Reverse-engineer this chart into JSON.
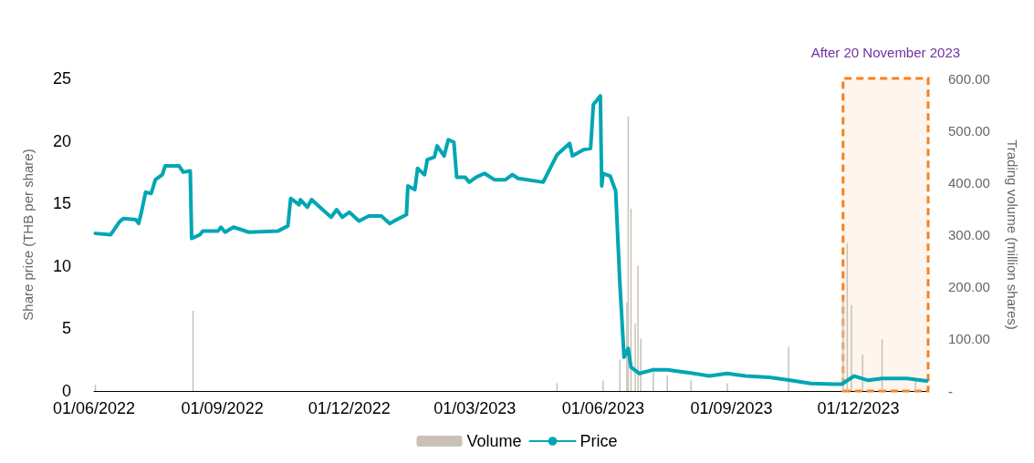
{
  "chart_data": {
    "type": "line",
    "ylabel": "Share price (THB per share)",
    "y2label": "Trading volume (million shares)",
    "xlim": [
      "2022-06-01",
      "2024-01-20"
    ],
    "xticks": [
      {
        "value": "2022-06-01",
        "label": "01/06/2022"
      },
      {
        "value": "2022-09-01",
        "label": "01/09/2022"
      },
      {
        "value": "2022-12-01",
        "label": "01/12/2022"
      },
      {
        "value": "2023-03-01",
        "label": "01/03/2023"
      },
      {
        "value": "2023-06-01",
        "label": "01/06/2023"
      },
      {
        "value": "2023-09-01",
        "label": "01/09/2023"
      },
      {
        "value": "2023-12-01",
        "label": "01/12/2023"
      }
    ],
    "ylim": [
      0,
      25
    ],
    "yticks": [
      0,
      5,
      10,
      15,
      20,
      25
    ],
    "y2lim": [
      0,
      600
    ],
    "y2ticks": [
      {
        "value": 0,
        "label": "-"
      },
      {
        "value": 100,
        "label": "100.00"
      },
      {
        "value": 200,
        "label": "200.00"
      },
      {
        "value": 300,
        "label": "300.00"
      },
      {
        "value": 400,
        "label": "400.00"
      },
      {
        "value": 500,
        "label": "500.00"
      },
      {
        "value": 600,
        "label": "600.00"
      }
    ],
    "grid": false,
    "legend": "bottom",
    "marker": "none",
    "line_style": "solid",
    "bands": [
      {
        "axis": "x",
        "from": "2023-11-20",
        "to": "2024-01-20",
        "label": "After 20 November 2023",
        "color": "#f58220"
      }
    ],
    "series": [
      {
        "name": "Volume",
        "type": "bar",
        "axis": "y2",
        "color": "#c9c1b6",
        "x": [
          "2022-06-02",
          "2022-08-11",
          "2023-04-29",
          "2023-06-01",
          "2023-06-13",
          "2023-06-18",
          "2023-06-19",
          "2023-06-21",
          "2023-06-24",
          "2023-06-26",
          "2023-06-28",
          "2023-07-02",
          "2023-07-07",
          "2023-07-17",
          "2023-08-03",
          "2023-08-29",
          "2023-10-12",
          "2023-11-01",
          "2023-11-20",
          "2023-11-23",
          "2023-11-26",
          "2023-12-04",
          "2023-12-18",
          "2023-12-29",
          "2024-01-11"
        ],
        "values": [
          12,
          154,
          15,
          20,
          60,
          170,
          527,
          350,
          130,
          240,
          100,
          null,
          45,
          30,
          20,
          15,
          85,
          null,
          174,
          284,
          165,
          70,
          99,
          null,
          20
        ]
      },
      {
        "name": "Price",
        "color": "#00a6b4",
        "x": [
          "2022-06-02",
          "2022-06-13",
          "2022-06-19",
          "2022-06-22",
          "2022-07-01",
          "2022-07-03",
          "2022-07-05",
          "2022-07-08",
          "2022-07-12",
          "2022-07-15",
          "2022-07-20",
          "2022-07-22",
          "2022-08-01",
          "2022-08-04",
          "2022-08-09",
          "2022-08-10",
          "2022-08-16",
          "2022-08-18",
          "2022-08-29",
          "2022-08-31",
          "2022-09-03",
          "2022-09-09",
          "2022-09-20",
          "2022-10-11",
          "2022-10-18",
          "2022-10-20",
          "2022-10-26",
          "2022-10-27",
          "2022-11-01",
          "2022-11-04",
          "2022-11-09",
          "2022-11-15",
          "2022-11-18",
          "2022-11-22",
          "2022-11-26",
          "2022-12-01",
          "2022-12-08",
          "2022-12-15",
          "2022-12-24",
          "2022-12-30",
          "2023-01-04",
          "2023-01-11",
          "2023-01-12",
          "2023-01-17",
          "2023-01-19",
          "2023-01-24",
          "2023-01-26",
          "2023-01-31",
          "2023-02-02",
          "2023-02-07",
          "2023-02-10",
          "2023-02-14",
          "2023-02-16",
          "2023-02-22",
          "2023-02-25",
          "2023-03-02",
          "2023-03-08",
          "2023-03-15",
          "2023-03-23",
          "2023-03-28",
          "2023-04-01",
          "2023-04-19",
          "2023-04-29",
          "2023-05-08",
          "2023-05-10",
          "2023-05-18",
          "2023-05-23",
          "2023-05-25",
          "2023-05-30",
          "2023-05-31",
          "2023-06-01",
          "2023-06-06",
          "2023-06-10",
          "2023-06-13",
          "2023-06-16",
          "2023-06-19",
          "2023-06-21",
          "2023-06-27",
          "2023-07-07",
          "2023-07-17",
          "2023-08-05",
          "2023-08-16",
          "2023-08-29",
          "2023-09-11",
          "2023-09-28",
          "2023-10-11",
          "2023-10-28",
          "2023-11-14",
          "2023-11-19",
          "2023-11-28",
          "2023-12-08",
          "2023-12-18",
          "2024-01-05",
          "2024-01-19"
        ],
        "values": [
          12.6,
          12.5,
          13.5,
          13.8,
          13.7,
          13.4,
          14.3,
          15.9,
          15.8,
          16.9,
          17.3,
          18.0,
          18.0,
          17.5,
          17.6,
          12.2,
          12.5,
          12.8,
          12.8,
          13.1,
          12.7,
          13.1,
          12.7,
          12.8,
          13.2,
          15.4,
          14.9,
          15.3,
          14.7,
          15.3,
          14.8,
          14.2,
          13.9,
          14.5,
          13.9,
          14.3,
          13.6,
          14.0,
          14.0,
          13.4,
          13.7,
          14.1,
          16.4,
          16.1,
          17.8,
          17.3,
          18.5,
          18.7,
          19.6,
          18.8,
          20.1,
          19.9,
          17.1,
          17.1,
          16.7,
          17.1,
          17.4,
          16.9,
          16.9,
          17.3,
          17.0,
          16.7,
          18.9,
          19.8,
          18.8,
          19.3,
          19.4,
          22.9,
          23.6,
          16.4,
          17.4,
          17.2,
          16.0,
          8.6,
          2.7,
          3.4,
          1.9,
          1.4,
          1.7,
          1.7,
          1.4,
          1.2,
          1.4,
          1.2,
          1.1,
          0.9,
          0.6,
          0.55,
          0.55,
          1.2,
          0.85,
          1.0,
          1.0,
          0.8
        ]
      }
    ]
  }
}
